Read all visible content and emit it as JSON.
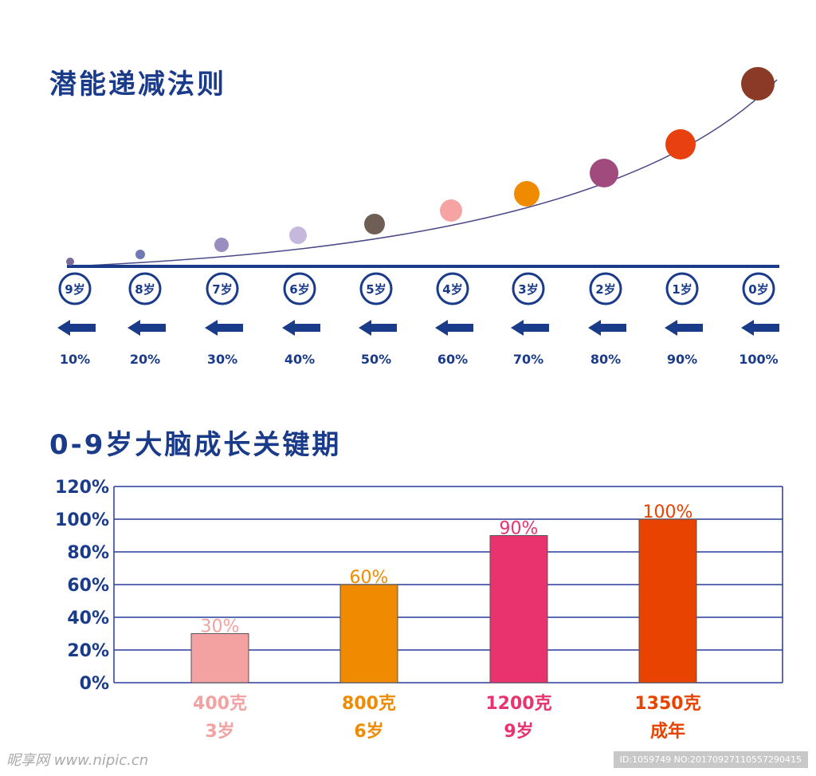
{
  "title1": "潜能递减法则",
  "title2": "0-9岁大脑成长关键期",
  "potential": {
    "points": [
      {
        "age": "9岁",
        "percent": "10%",
        "color": "#7a6a9a"
      },
      {
        "age": "8岁",
        "percent": "20%",
        "color": "#6f7ab5"
      },
      {
        "age": "7岁",
        "percent": "30%",
        "color": "#9a8ec0"
      },
      {
        "age": "6岁",
        "percent": "40%",
        "color": "#c5b8dc"
      },
      {
        "age": "5岁",
        "percent": "50%",
        "color": "#6e5e55"
      },
      {
        "age": "4岁",
        "percent": "60%",
        "color": "#f5a3a3"
      },
      {
        "age": "3岁",
        "percent": "70%",
        "color": "#f08a00"
      },
      {
        "age": "2岁",
        "percent": "80%",
        "color": "#a04a7e"
      },
      {
        "age": "1岁",
        "percent": "90%",
        "color": "#e8400e"
      },
      {
        "age": "0岁",
        "percent": "100%",
        "color": "#8b3a28"
      }
    ]
  },
  "chart_data": {
    "type": "bar",
    "title": "0-9岁大脑成长关键期",
    "categories": [
      "400克 3岁",
      "800克 6岁",
      "1200克 9岁",
      "1350克 成年"
    ],
    "weights": [
      "400克",
      "800克",
      "1200克",
      "1350克"
    ],
    "ages": [
      "3岁",
      "6岁",
      "9岁",
      "成年"
    ],
    "values": [
      30,
      60,
      90,
      100
    ],
    "data_labels": [
      "30%",
      "60%",
      "90%",
      "100%"
    ],
    "colors": [
      "#f4a1a1",
      "#f08a00",
      "#e8336e",
      "#e84300"
    ],
    "ylim": [
      0,
      120
    ],
    "yticks": [
      "0%",
      "20%",
      "40%",
      "60%",
      "80%",
      "100%",
      "120%"
    ],
    "grid": true,
    "xlabel": "",
    "ylabel": ""
  },
  "watermark": {
    "left": "昵享网 www.nipic.cn",
    "right": "ID:1059749 NO:20170927110557290415"
  }
}
